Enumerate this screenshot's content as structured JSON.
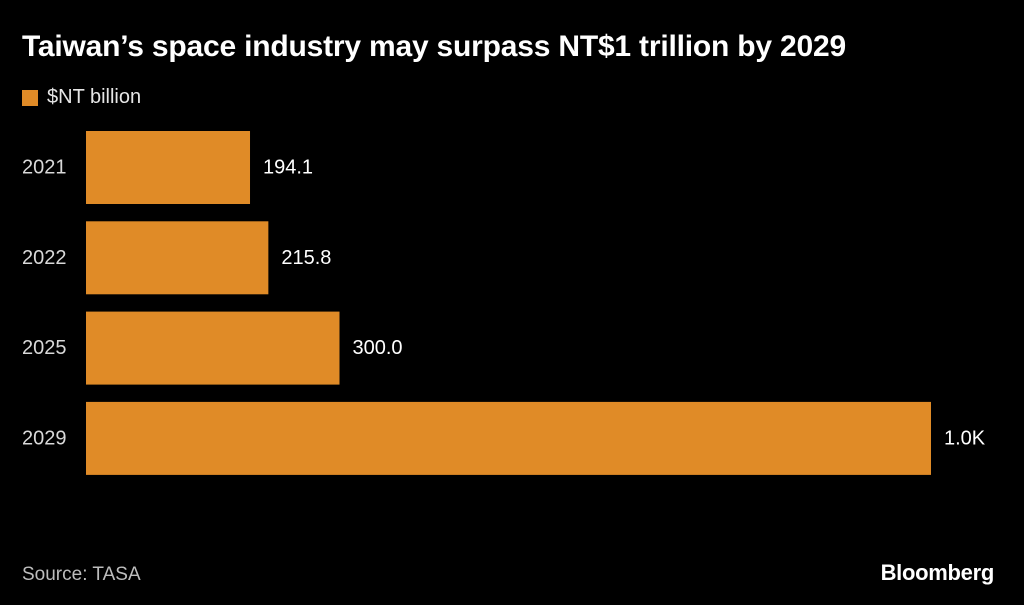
{
  "chart_data": {
    "type": "bar",
    "orientation": "horizontal",
    "title": "Taiwan’s space industry may surpass NT$1 trillion by 2029",
    "series": [
      {
        "name": "$NT billion",
        "color": "#e08b27",
        "values": [
          194.1,
          215.8,
          300.0,
          1000.0
        ],
        "labels": [
          "194.1",
          "215.8",
          "300.0",
          "1.0K"
        ]
      }
    ],
    "categories": [
      "2021",
      "2022",
      "2025",
      "2029"
    ],
    "xlabel": "",
    "ylabel": "",
    "xlim": [
      0,
      1000
    ],
    "legend_position": "top-left",
    "grid": false
  },
  "footer": {
    "source": "Source: TASA",
    "brand": "Bloomberg"
  }
}
